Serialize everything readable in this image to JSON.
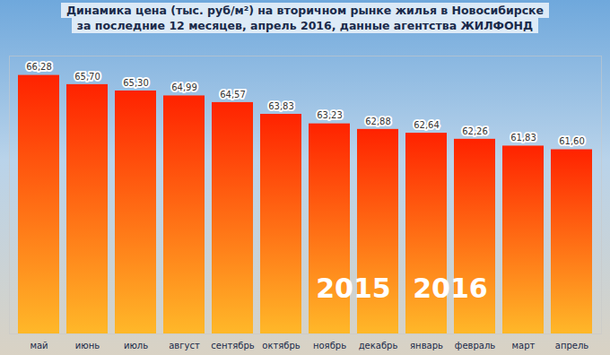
{
  "chart_data": {
    "type": "bar",
    "title": "Динамика цена (тыс. руб/м²) на вторичном рынке жилья в Новосибирске",
    "subtitle": "за последние 12 месяцев, апрель 2016, данные агентства ЖИЛФОНД",
    "categories": [
      "май",
      "июнь",
      "июль",
      "август",
      "сентябрь",
      "октябрь",
      "ноябрь",
      "декабрь",
      "январь",
      "февраль",
      "март",
      "апрель"
    ],
    "values": [
      66.28,
      65.7,
      65.3,
      64.99,
      64.57,
      63.83,
      63.23,
      62.88,
      62.64,
      62.26,
      61.83,
      61.6
    ],
    "value_labels": [
      "66,28",
      "65,70",
      "65,30",
      "64,99",
      "64,57",
      "63,83",
      "63,23",
      "62,88",
      "62,64",
      "62,26",
      "61,83",
      "61,60"
    ],
    "annotations": [
      "2015",
      "2016"
    ],
    "color": "#ff2200",
    "ylim": [
      50,
      67.5
    ],
    "data_labels": true,
    "tick_labels": "x",
    "grid": false
  }
}
